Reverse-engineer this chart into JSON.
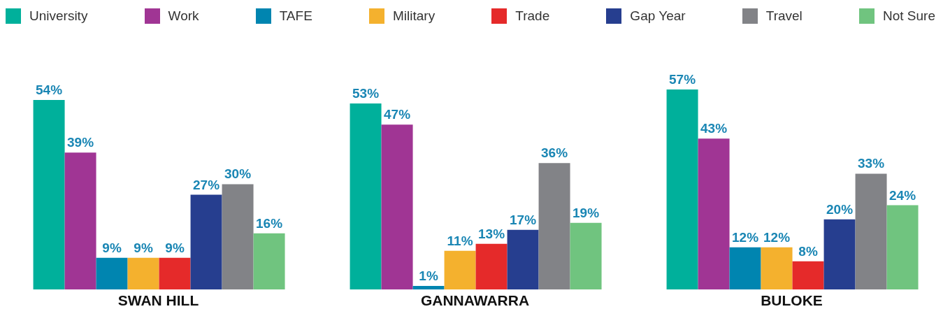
{
  "chart_data": {
    "type": "bar",
    "categories": [
      "SWAN HILL",
      "GANNAWARRA",
      "BULOKE"
    ],
    "legend": "top",
    "series": [
      {
        "name": "University",
        "color": "#00b09b",
        "values": [
          54,
          53,
          57
        ],
        "value_labels": [
          "54%",
          "53%",
          "57%"
        ]
      },
      {
        "name": "Work",
        "color": "#a03594",
        "values": [
          39,
          47,
          43
        ],
        "value_labels": [
          "39%",
          "47%",
          "43%"
        ]
      },
      {
        "name": "TAFE",
        "color": "#0085b0",
        "values": [
          9,
          1,
          12
        ],
        "value_labels": [
          "9%",
          "1%",
          "12%"
        ]
      },
      {
        "name": "Military",
        "color": "#f4b12e",
        "values": [
          9,
          11,
          12
        ],
        "value_labels": [
          "9%",
          "11%",
          "12%"
        ]
      },
      {
        "name": "Trade",
        "color": "#e52a2a",
        "values": [
          9,
          13,
          8
        ],
        "value_labels": [
          "9%",
          "13%",
          "8%"
        ]
      },
      {
        "name": "Gap Year",
        "color": "#263e8f",
        "values": [
          27,
          17,
          20
        ],
        "value_labels": [
          "27%",
          "17%",
          "20%"
        ]
      },
      {
        "name": "Travel",
        "color": "#828387",
        "values": [
          30,
          36,
          33
        ],
        "value_labels": [
          "30%",
          "36%",
          "33%"
        ]
      },
      {
        "name": "Not Sure",
        "color": "#70c47f",
        "values": [
          16,
          19,
          24
        ],
        "value_labels": [
          "16%",
          "19%",
          "24%"
        ]
      }
    ]
  }
}
